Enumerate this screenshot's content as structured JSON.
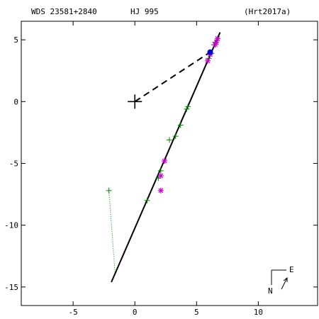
{
  "header": {
    "wds_id": "WDS 23581+2840",
    "discoverer": "HJ  995",
    "reference": "(Hrt2017a)"
  },
  "compass": {
    "north_label": "N",
    "east_label": "E"
  },
  "colors": {
    "orbit": "#000000",
    "micrometer": "#008800",
    "speckle": "#cc00cc",
    "current_position": "#0000cc",
    "primary": "#000000"
  },
  "chart_data": {
    "type": "scatter",
    "title": "",
    "xlabel": "",
    "ylabel": "",
    "xlim": [
      -9.2,
      14.8
    ],
    "ylim": [
      6.5,
      -16.5
    ],
    "x_ticks": [
      -5,
      0,
      5,
      10
    ],
    "y_ticks": [
      5,
      0,
      -5,
      -10,
      -15
    ],
    "grid": false,
    "primary_position": [
      0,
      0
    ],
    "orbit_line": [
      [
        -1.9,
        -14.6
      ],
      [
        6.9,
        5.6
      ]
    ],
    "position_marker": [
      6.1,
      4.0
    ],
    "connector_line": [
      [
        0,
        0
      ],
      [
        6.1,
        4.0
      ]
    ],
    "residual_line": [
      [
        -2.1,
        -7.2
      ],
      [
        -1.6,
        -13.9
      ]
    ],
    "series": [
      {
        "marker": "plus",
        "points": [
          [
            6.5,
            4.8
          ],
          [
            6.4,
            4.6
          ],
          [
            6.2,
            3.9
          ],
          [
            6.0,
            3.5
          ],
          [
            4.3,
            -0.4
          ],
          [
            4.2,
            -0.6
          ],
          [
            3.7,
            -1.9
          ],
          [
            3.3,
            -2.8
          ],
          [
            2.8,
            -3.1
          ],
          [
            2.1,
            -5.6
          ],
          [
            1.9,
            -6.2
          ],
          [
            1.0,
            -8.0
          ],
          [
            -2.1,
            -7.2
          ]
        ]
      },
      {
        "marker": "asterisk",
        "points": [
          [
            6.7,
            5.1
          ],
          [
            6.6,
            4.8
          ],
          [
            6.5,
            4.6
          ],
          [
            6.1,
            3.8
          ],
          [
            5.9,
            3.3
          ],
          [
            2.4,
            -4.8
          ],
          [
            2.1,
            -6.0
          ],
          [
            2.1,
            -7.2
          ]
        ]
      }
    ]
  }
}
